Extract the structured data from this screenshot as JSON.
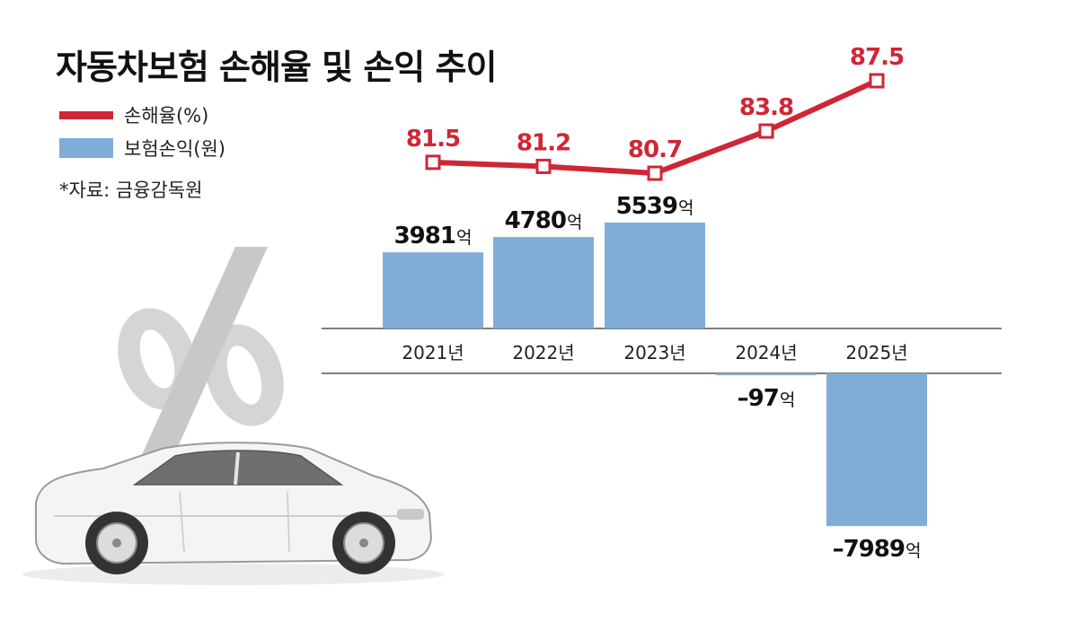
{
  "title": "자동차보험 손해율 및 손익 추이",
  "legend": {
    "line_label": "손해율(%)",
    "bar_label": "보험손익(원)"
  },
  "source": "*자료: 금융감독원",
  "colors": {
    "line": "#cf2636",
    "bar": "#7fadd8",
    "axis": "#555555",
    "text": "#111111",
    "watermark": "#d8d8d8"
  },
  "decor": {
    "watermark_icon": "percent-sign-icon",
    "illustration": "white-sedan-car"
  },
  "chart_data": {
    "type": "bar",
    "categories": [
      "2021년",
      "2022년",
      "2023년",
      "2024년",
      "2025년"
    ],
    "series": [
      {
        "name": "보험손익(원)",
        "type": "bar",
        "values": [
          3981,
          4780,
          5539,
          -97,
          -7989
        ],
        "labels": [
          {
            "num": "3981",
            "unit": "억"
          },
          {
            "num": "4780",
            "unit": "억"
          },
          {
            "num": "5539",
            "unit": "억"
          },
          {
            "num": "–97",
            "unit": "억"
          },
          {
            "num": "–7989",
            "unit": "억"
          }
        ]
      },
      {
        "name": "손해율(%)",
        "type": "line",
        "values": [
          81.5,
          81.2,
          80.7,
          83.8,
          87.5
        ],
        "labels": [
          "81.5",
          "81.2",
          "80.7",
          "83.8",
          "87.5"
        ]
      }
    ]
  }
}
